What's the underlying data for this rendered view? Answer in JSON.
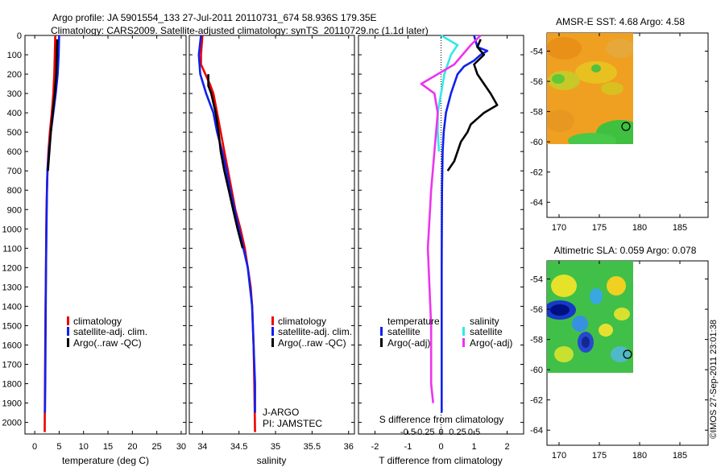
{
  "header": {
    "line1": "Argo profile: JA 5901554_133 27-Jul-2011 20110731_674 58.936S 179.35E",
    "line2": "Climatology: CARS2009. Satellite-adjusted climatology: synTS_20110729.nc (1.1d later)"
  },
  "side_stamp": "©IMOS 27-Sep-2011 23:01:38",
  "colors": {
    "climatology": "#ee0000",
    "satellite": "#1020ee",
    "argo": "#000000",
    "sat_salinity": "#33e8e8",
    "argo_salinity": "#ee33ee"
  },
  "depth_ticks": [
    "0",
    "100",
    "200",
    "300",
    "400",
    "500",
    "600",
    "700",
    "800",
    "900",
    "1000",
    "1100",
    "1200",
    "1300",
    "1400",
    "1500",
    "1600",
    "1700",
    "1800",
    "1900",
    "2000"
  ],
  "chart_data": [
    {
      "id": "temperature",
      "type": "line",
      "xlabel": "temperature (deg C)",
      "ylabel": "",
      "xlim": [
        -2,
        31
      ],
      "ylim": [
        2060,
        0
      ],
      "xticks": [
        "0",
        "5",
        "10",
        "15",
        "20",
        "25",
        "30"
      ],
      "xtick_values": [
        0,
        5,
        10,
        15,
        20,
        25,
        30
      ],
      "legend": [
        "climatology",
        "satellite-adj. clim.",
        "Argo(..raw -QC)"
      ],
      "series": [
        {
          "name": "climatology",
          "color": "#ee0000",
          "points": [
            [
              4.2,
              0
            ],
            [
              4.1,
              100
            ],
            [
              4.0,
              200
            ],
            [
              3.8,
              300
            ],
            [
              3.5,
              400
            ],
            [
              3.1,
              500
            ],
            [
              2.8,
              600
            ],
            [
              2.6,
              700
            ],
            [
              2.5,
              800
            ],
            [
              2.4,
              900
            ],
            [
              2.35,
              1000
            ],
            [
              2.3,
              1200
            ],
            [
              2.2,
              1400
            ],
            [
              2.15,
              1600
            ],
            [
              2.1,
              1800
            ],
            [
              2.05,
              2050
            ]
          ]
        },
        {
          "name": "satellite-adj. clim.",
          "color": "#1020ee",
          "points": [
            [
              5.0,
              0
            ],
            [
              4.9,
              100
            ],
            [
              4.7,
              200
            ],
            [
              4.3,
              300
            ],
            [
              3.8,
              400
            ],
            [
              3.3,
              500
            ],
            [
              2.9,
              600
            ],
            [
              2.6,
              700
            ],
            [
              2.5,
              800
            ],
            [
              2.45,
              900
            ],
            [
              2.4,
              1000
            ],
            [
              2.3,
              1200
            ],
            [
              2.25,
              1400
            ],
            [
              2.2,
              1600
            ],
            [
              2.15,
              1800
            ],
            [
              2.1,
              1950
            ]
          ]
        },
        {
          "name": "Argo(..raw -QC)",
          "color": "#000000",
          "points": [
            [
              4.6,
              20
            ],
            [
              4.5,
              100
            ],
            [
              4.4,
              200
            ],
            [
              4.1,
              300
            ],
            [
              3.7,
              400
            ],
            [
              3.3,
              500
            ],
            [
              3.0,
              600
            ],
            [
              2.7,
              700
            ]
          ]
        }
      ]
    },
    {
      "id": "salinity",
      "type": "line",
      "xlabel": "salinity",
      "ylabel": "",
      "xlim": [
        33.82,
        36.08
      ],
      "ylim": [
        2060,
        0
      ],
      "xticks": [
        "34",
        "34.5",
        "35",
        "35.5",
        "36"
      ],
      "xtick_values": [
        34,
        34.5,
        35,
        35.5,
        36
      ],
      "legend": [
        "climatology",
        "satellite-adj. clim.",
        "Argo(..raw -QC)"
      ],
      "annotations": [
        "J-ARGO",
        "PI: JAMSTEC"
      ],
      "series": [
        {
          "name": "climatology",
          "color": "#ee0000",
          "points": [
            [
              34.0,
              0
            ],
            [
              33.98,
              100
            ],
            [
              33.98,
              150
            ],
            [
              34.1,
              250
            ],
            [
              34.15,
              300
            ],
            [
              34.2,
              400
            ],
            [
              34.25,
              500
            ],
            [
              34.3,
              600
            ],
            [
              34.35,
              700
            ],
            [
              34.4,
              800
            ],
            [
              34.45,
              900
            ],
            [
              34.52,
              1000
            ],
            [
              34.58,
              1100
            ],
            [
              34.62,
              1200
            ],
            [
              34.66,
              1300
            ],
            [
              34.68,
              1400
            ],
            [
              34.7,
              1600
            ],
            [
              34.71,
              1800
            ],
            [
              34.72,
              2050
            ]
          ]
        },
        {
          "name": "satellite-adj. clim.",
          "color": "#1020ee",
          "points": [
            [
              33.98,
              0
            ],
            [
              33.95,
              100
            ],
            [
              33.97,
              200
            ],
            [
              34.05,
              300
            ],
            [
              34.15,
              400
            ],
            [
              34.2,
              500
            ],
            [
              34.27,
              600
            ],
            [
              34.33,
              700
            ],
            [
              34.38,
              800
            ],
            [
              34.44,
              900
            ],
            [
              34.5,
              1000
            ],
            [
              34.56,
              1100
            ],
            [
              34.62,
              1200
            ],
            [
              34.65,
              1300
            ],
            [
              34.68,
              1400
            ],
            [
              34.7,
              1600
            ],
            [
              34.72,
              1800
            ],
            [
              34.72,
              1950
            ]
          ]
        },
        {
          "name": "Argo(..raw -QC)",
          "color": "#000000",
          "points": [
            [
              34.08,
              200
            ],
            [
              34.08,
              260
            ],
            [
              34.12,
              300
            ],
            [
              34.18,
              400
            ],
            [
              34.22,
              500
            ],
            [
              34.25,
              600
            ],
            [
              34.3,
              700
            ],
            [
              34.36,
              800
            ],
            [
              34.42,
              900
            ],
            [
              34.48,
              1000
            ],
            [
              34.55,
              1100
            ]
          ]
        }
      ]
    },
    {
      "id": "difference",
      "type": "line",
      "xlabel": "T difference from climatology",
      "top_label": "S difference from climatology",
      "xlim": [
        -2.5,
        2.5
      ],
      "ylim": [
        2060,
        0
      ],
      "xticks": [
        "-2",
        "-1",
        "0",
        "1",
        "2"
      ],
      "xtick_values": [
        -2,
        -1,
        0,
        1,
        2
      ],
      "s_ticks": [
        "-0.5",
        "-0.25",
        "0",
        "0.25",
        "0.5"
      ],
      "s_tick_values": [
        -0.5,
        -0.25,
        0,
        0.25,
        0.5
      ],
      "legend_temperature": "temperature",
      "legend_salinity": "salinity",
      "legend": [
        "satellite",
        "Argo(-adj)",
        "satellite",
        "Argo(-adj)"
      ],
      "series": [
        {
          "name": "satellite",
          "group": "temperature",
          "color": "#1020ee",
          "points": [
            [
              1.0,
              0
            ],
            [
              1.1,
              60
            ],
            [
              1.4,
              80
            ],
            [
              1.2,
              100
            ],
            [
              1.0,
              130
            ],
            [
              0.7,
              160
            ],
            [
              0.5,
              200
            ],
            [
              0.3,
              300
            ],
            [
              0.15,
              400
            ],
            [
              0.08,
              500
            ],
            [
              0.05,
              600
            ],
            [
              0.03,
              800
            ],
            [
              0.02,
              1200
            ],
            [
              0.02,
              1600
            ],
            [
              0.02,
              1950
            ]
          ]
        },
        {
          "name": "Argo(-adj)",
          "group": "temperature",
          "color": "#000000",
          "points": [
            [
              1.2,
              20
            ],
            [
              1.1,
              60
            ],
            [
              1.3,
              100
            ],
            [
              1.0,
              150
            ],
            [
              1.1,
              200
            ],
            [
              1.5,
              300
            ],
            [
              1.7,
              360
            ],
            [
              1.3,
              400
            ],
            [
              1.1,
              430
            ],
            [
              0.9,
              460
            ],
            [
              0.8,
              500
            ],
            [
              0.6,
              550
            ],
            [
              0.5,
              600
            ],
            [
              0.4,
              650
            ],
            [
              0.2,
              700
            ]
          ]
        },
        {
          "name": "satellite",
          "group": "salinity",
          "color": "#33e8e8",
          "points": [
            [
              0.0,
              0
            ],
            [
              0.25,
              50
            ],
            [
              0.15,
              100
            ],
            [
              0.05,
              200
            ],
            [
              0.0,
              300
            ],
            [
              -0.05,
              400
            ],
            [
              -0.05,
              500
            ],
            [
              -0.03,
              600
            ]
          ]
        },
        {
          "name": "Argo(-adj)",
          "group": "salinity",
          "color": "#ee33ee",
          "points": [
            [
              0.6,
              0
            ],
            [
              0.45,
              50
            ],
            [
              0.2,
              150
            ],
            [
              -0.3,
              250
            ],
            [
              -0.1,
              300
            ],
            [
              -0.05,
              400
            ],
            [
              -0.1,
              600
            ],
            [
              -0.15,
              800
            ],
            [
              -0.2,
              1100
            ],
            [
              -0.15,
              1500
            ],
            [
              -0.15,
              1800
            ],
            [
              -0.12,
              1900
            ]
          ]
        }
      ]
    },
    {
      "id": "sst_map",
      "type": "heatmap",
      "title": "AMSR-E SST: 4.68 Argo: 4.58",
      "xticks": [
        "170",
        "175",
        "180",
        "185"
      ],
      "xtick_values": [
        170,
        175,
        180,
        185
      ],
      "yticks": [
        "-54",
        "-56",
        "-58",
        "-60",
        "-62",
        "-64"
      ],
      "ytick_values": [
        -54,
        -56,
        -58,
        -60,
        -62,
        -64
      ],
      "xlim": [
        168.5,
        188.5
      ],
      "ylim": [
        -65,
        -52.8
      ],
      "data_extent": {
        "lon": [
          169,
          180
        ],
        "lat": [
          -60.2,
          -52.8
        ]
      },
      "marker": {
        "lon": 179.35,
        "lat": -58.94
      }
    },
    {
      "id": "sla_map",
      "type": "heatmap",
      "title": "Altimetric SLA: 0.059 Argo: 0.078",
      "xticks": [
        "170",
        "175",
        "180",
        "185"
      ],
      "xtick_values": [
        170,
        175,
        180,
        185
      ],
      "yticks": [
        "-54",
        "-56",
        "-58",
        "-60",
        "-62",
        "-64"
      ],
      "ytick_values": [
        -54,
        -56,
        -58,
        -60,
        -62,
        -64
      ],
      "xlim": [
        168.5,
        188.5
      ],
      "ylim": [
        -65,
        -52.8
      ],
      "data_extent": {
        "lon": [
          169,
          180
        ],
        "lat": [
          -60.2,
          -52.8
        ]
      },
      "marker": {
        "lon": 179.35,
        "lat": -58.94
      }
    }
  ]
}
